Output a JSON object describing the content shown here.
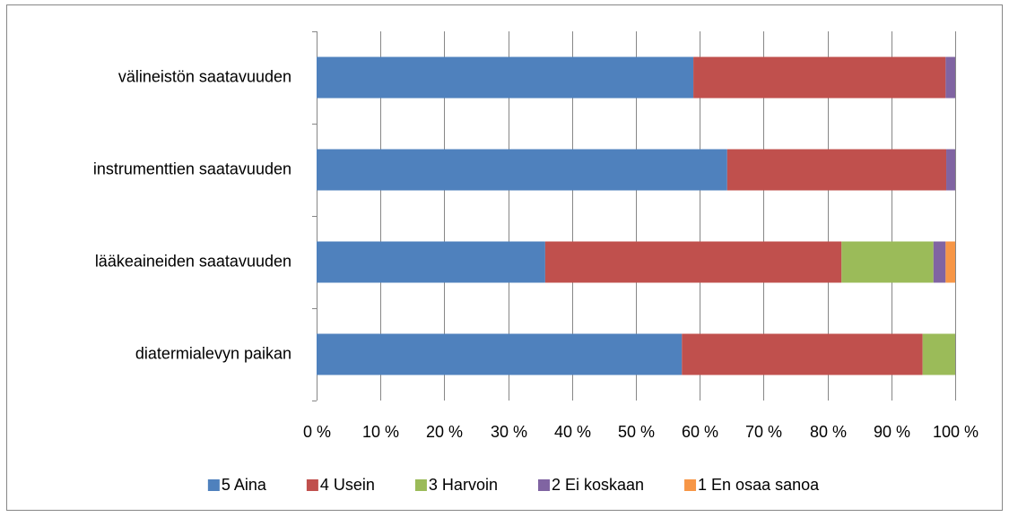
{
  "chart_data": {
    "type": "stacked-barh",
    "categories": [
      "välineistön saatavuuden",
      "instrumenttien saatavuuden",
      "lääkeaineiden saatavuuden",
      "diatermialevyn paikan"
    ],
    "series": [
      {
        "name": "5 Aina",
        "color": "#4f81bd",
        "values": [
          59.0,
          64.3,
          35.8,
          57.2
        ]
      },
      {
        "name": "4 Usein",
        "color": "#c0504d",
        "values": [
          39.5,
          34.3,
          46.4,
          37.7
        ]
      },
      {
        "name": "3 Harvoin",
        "color": "#9bbb59",
        "values": [
          0,
          0,
          14.4,
          5.1
        ]
      },
      {
        "name": "2 Ei koskaan",
        "color": "#8064a2",
        "values": [
          1.5,
          1.4,
          1.9,
          0
        ]
      },
      {
        "name": "1 En osaa sanoa",
        "color": "#f79646",
        "values": [
          0,
          0,
          1.5,
          0
        ]
      }
    ],
    "xlim": [
      0,
      100
    ],
    "xticks": [
      {
        "value": 0,
        "label": "0 %"
      },
      {
        "value": 10,
        "label": "10 %"
      },
      {
        "value": 20,
        "label": "20 %"
      },
      {
        "value": 30,
        "label": "30 %"
      },
      {
        "value": 40,
        "label": "40 %"
      },
      {
        "value": 50,
        "label": "50 %"
      },
      {
        "value": 60,
        "label": "60 %"
      },
      {
        "value": 70,
        "label": "70 %"
      },
      {
        "value": 80,
        "label": "80 %"
      },
      {
        "value": 90,
        "label": "90 %"
      },
      {
        "value": 100,
        "label": "100 %"
      }
    ],
    "grid": true,
    "legend": "bottom"
  }
}
